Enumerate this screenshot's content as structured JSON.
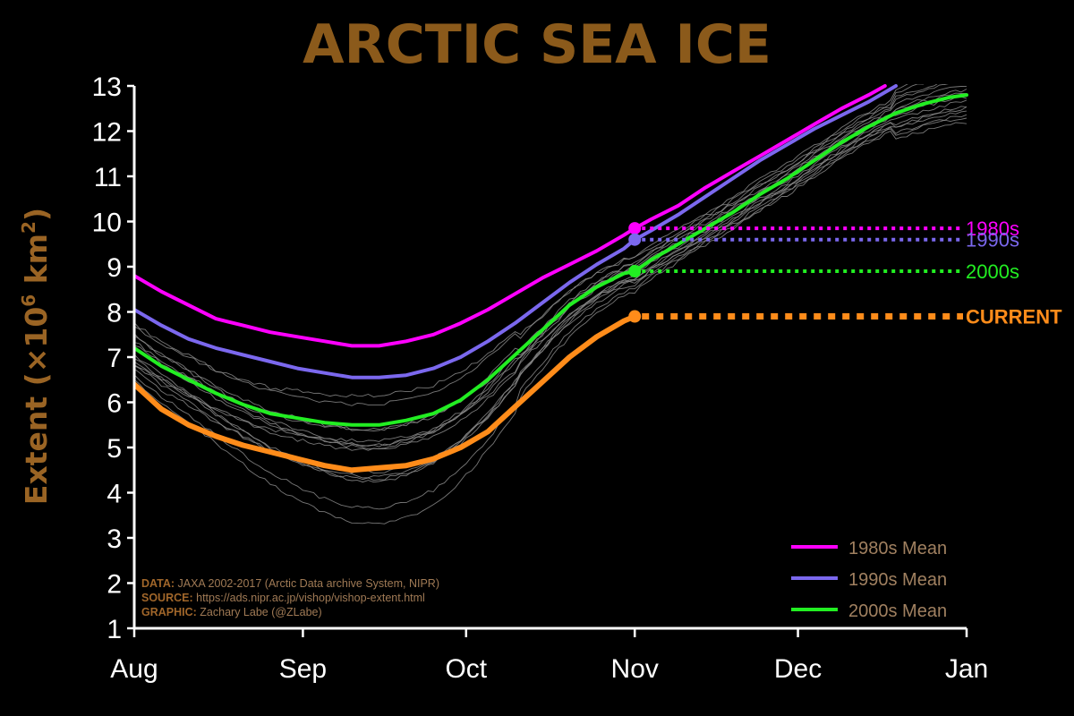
{
  "colors": {
    "background": "#000000",
    "title": "#8B5A1B",
    "ylabel": "#9A6424",
    "axis": "#FFFFFF",
    "note_label": "#A0662A",
    "note_value": "#A07A55",
    "legend_text": "#A08060",
    "years": "#8C8C8C"
  },
  "chart_data": {
    "type": "line",
    "title": "ARCTIC SEA ICE",
    "ylabel": "Extent (×10⁶ km²)",
    "ylabel_parts": {
      "main": "Extent (",
      "mult": "×10",
      "exp1": "6",
      "unit": " km",
      "exp2": "2",
      "close": ")"
    },
    "xlabel": "",
    "x_ticks": [
      "Aug",
      "Sep",
      "Oct",
      "Nov",
      "Dec",
      "Jan"
    ],
    "x_tick_days": [
      0,
      31,
      61,
      92,
      122,
      153
    ],
    "xlim_days": [
      0,
      153
    ],
    "y_ticks": [
      1,
      2,
      3,
      4,
      5,
      6,
      7,
      8,
      9,
      10,
      11,
      12,
      13
    ],
    "ylim": [
      1,
      13
    ],
    "grid": false,
    "legend_position": "bottom-right",
    "series": [
      {
        "name": "1980s Mean",
        "color": "#FF00FF",
        "width": 4,
        "points": [
          [
            0,
            8.8
          ],
          [
            5,
            8.45
          ],
          [
            10,
            8.15
          ],
          [
            15,
            7.85
          ],
          [
            20,
            7.7
          ],
          [
            25,
            7.55
          ],
          [
            30,
            7.45
          ],
          [
            35,
            7.35
          ],
          [
            40,
            7.25
          ],
          [
            45,
            7.25
          ],
          [
            50,
            7.35
          ],
          [
            55,
            7.5
          ],
          [
            60,
            7.75
          ],
          [
            65,
            8.05
          ],
          [
            70,
            8.4
          ],
          [
            75,
            8.75
          ],
          [
            80,
            9.05
          ],
          [
            85,
            9.35
          ],
          [
            90,
            9.7
          ],
          [
            92,
            9.85
          ],
          [
            95,
            10.05
          ],
          [
            100,
            10.35
          ],
          [
            105,
            10.75
          ],
          [
            110,
            11.1
          ],
          [
            115,
            11.45
          ],
          [
            120,
            11.8
          ],
          [
            125,
            12.15
          ],
          [
            130,
            12.5
          ],
          [
            135,
            12.8
          ],
          [
            138,
            13.0
          ]
        ],
        "end_marker": {
          "day": 92,
          "value": 9.85,
          "label": "1980s"
        }
      },
      {
        "name": "1990s Mean",
        "color": "#7B68EE",
        "width": 4,
        "points": [
          [
            0,
            8.05
          ],
          [
            5,
            7.7
          ],
          [
            10,
            7.4
          ],
          [
            15,
            7.2
          ],
          [
            20,
            7.05
          ],
          [
            25,
            6.9
          ],
          [
            30,
            6.75
          ],
          [
            35,
            6.65
          ],
          [
            40,
            6.55
          ],
          [
            45,
            6.55
          ],
          [
            50,
            6.6
          ],
          [
            55,
            6.75
          ],
          [
            60,
            7.0
          ],
          [
            65,
            7.35
          ],
          [
            70,
            7.75
          ],
          [
            75,
            8.2
          ],
          [
            80,
            8.65
          ],
          [
            85,
            9.05
          ],
          [
            90,
            9.4
          ],
          [
            92,
            9.6
          ],
          [
            95,
            9.8
          ],
          [
            100,
            10.15
          ],
          [
            105,
            10.55
          ],
          [
            110,
            10.95
          ],
          [
            115,
            11.35
          ],
          [
            120,
            11.7
          ],
          [
            125,
            12.05
          ],
          [
            130,
            12.35
          ],
          [
            135,
            12.65
          ],
          [
            140,
            13.0
          ]
        ],
        "end_marker": {
          "day": 92,
          "value": 9.6,
          "label": "1990s"
        }
      },
      {
        "name": "2000s Mean",
        "color": "#22EE22",
        "width": 4,
        "points": [
          [
            0,
            7.2
          ],
          [
            5,
            6.8
          ],
          [
            10,
            6.5
          ],
          [
            15,
            6.2
          ],
          [
            20,
            5.95
          ],
          [
            25,
            5.75
          ],
          [
            30,
            5.65
          ],
          [
            35,
            5.55
          ],
          [
            40,
            5.5
          ],
          [
            45,
            5.5
          ],
          [
            50,
            5.6
          ],
          [
            55,
            5.75
          ],
          [
            60,
            6.05
          ],
          [
            65,
            6.5
          ],
          [
            70,
            7.05
          ],
          [
            75,
            7.6
          ],
          [
            80,
            8.15
          ],
          [
            85,
            8.55
          ],
          [
            90,
            8.85
          ],
          [
            92,
            8.9
          ],
          [
            95,
            9.15
          ],
          [
            100,
            9.5
          ],
          [
            105,
            9.85
          ],
          [
            110,
            10.2
          ],
          [
            115,
            10.6
          ],
          [
            120,
            10.95
          ],
          [
            125,
            11.35
          ],
          [
            130,
            11.75
          ],
          [
            135,
            12.1
          ],
          [
            140,
            12.4
          ],
          [
            145,
            12.6
          ],
          [
            150,
            12.75
          ],
          [
            153,
            12.8
          ]
        ],
        "end_marker": {
          "day": 92,
          "value": 8.9,
          "label": "2000s"
        }
      },
      {
        "name": "CURRENT",
        "color": "#FF8C1A",
        "width": 6,
        "points": [
          [
            0,
            6.4
          ],
          [
            5,
            5.85
          ],
          [
            10,
            5.5
          ],
          [
            15,
            5.25
          ],
          [
            20,
            5.05
          ],
          [
            25,
            4.9
          ],
          [
            30,
            4.75
          ],
          [
            35,
            4.6
          ],
          [
            40,
            4.5
          ],
          [
            45,
            4.55
          ],
          [
            50,
            4.6
          ],
          [
            55,
            4.75
          ],
          [
            60,
            5.0
          ],
          [
            65,
            5.35
          ],
          [
            70,
            5.9
          ],
          [
            75,
            6.45
          ],
          [
            80,
            7.0
          ],
          [
            85,
            7.45
          ],
          [
            90,
            7.8
          ],
          [
            92,
            7.9
          ]
        ],
        "end_marker": {
          "day": 92,
          "value": 7.9,
          "label": "CURRENT"
        }
      }
    ],
    "year_lines": [
      {
        "offset": -0.3,
        "min_shift": -0.9
      },
      {
        "offset": 0.3,
        "min_shift": -0.4
      },
      {
        "offset": -0.6,
        "min_shift": -1.6
      },
      {
        "offset": 0.1,
        "min_shift": -0.2
      },
      {
        "offset": -0.15,
        "min_shift": -1.0
      },
      {
        "offset": 0.45,
        "min_shift": 0.2
      },
      {
        "offset": -0.45,
        "min_shift": -0.6
      },
      {
        "offset": 0.2,
        "min_shift": -0.7
      },
      {
        "offset": -0.05,
        "min_shift": -1.2
      },
      {
        "offset": 0.55,
        "min_shift": -0.1
      },
      {
        "offset": -0.25,
        "min_shift": -0.3
      },
      {
        "offset": 0.05,
        "min_shift": -0.5
      },
      {
        "offset": -0.5,
        "min_shift": -1.35
      },
      {
        "offset": 0.35,
        "min_shift": -0.8
      },
      {
        "offset": -0.35,
        "min_shift": 0.0
      }
    ]
  },
  "notes": [
    {
      "label": "DATA:",
      "value": " JAXA 2002-2017 (Arctic Data archive System, NIPR)"
    },
    {
      "label": "SOURCE:",
      "value": " https://ads.nipr.ac.jp/vishop/vishop-extent.html"
    },
    {
      "label": "GRAPHIC:",
      "value": " Zachary Labe (@ZLabe)"
    }
  ],
  "legend": [
    {
      "label": "1980s Mean",
      "color": "#FF00FF"
    },
    {
      "label": "1990s Mean",
      "color": "#7B68EE"
    },
    {
      "label": "2000s Mean",
      "color": "#22EE22"
    }
  ]
}
